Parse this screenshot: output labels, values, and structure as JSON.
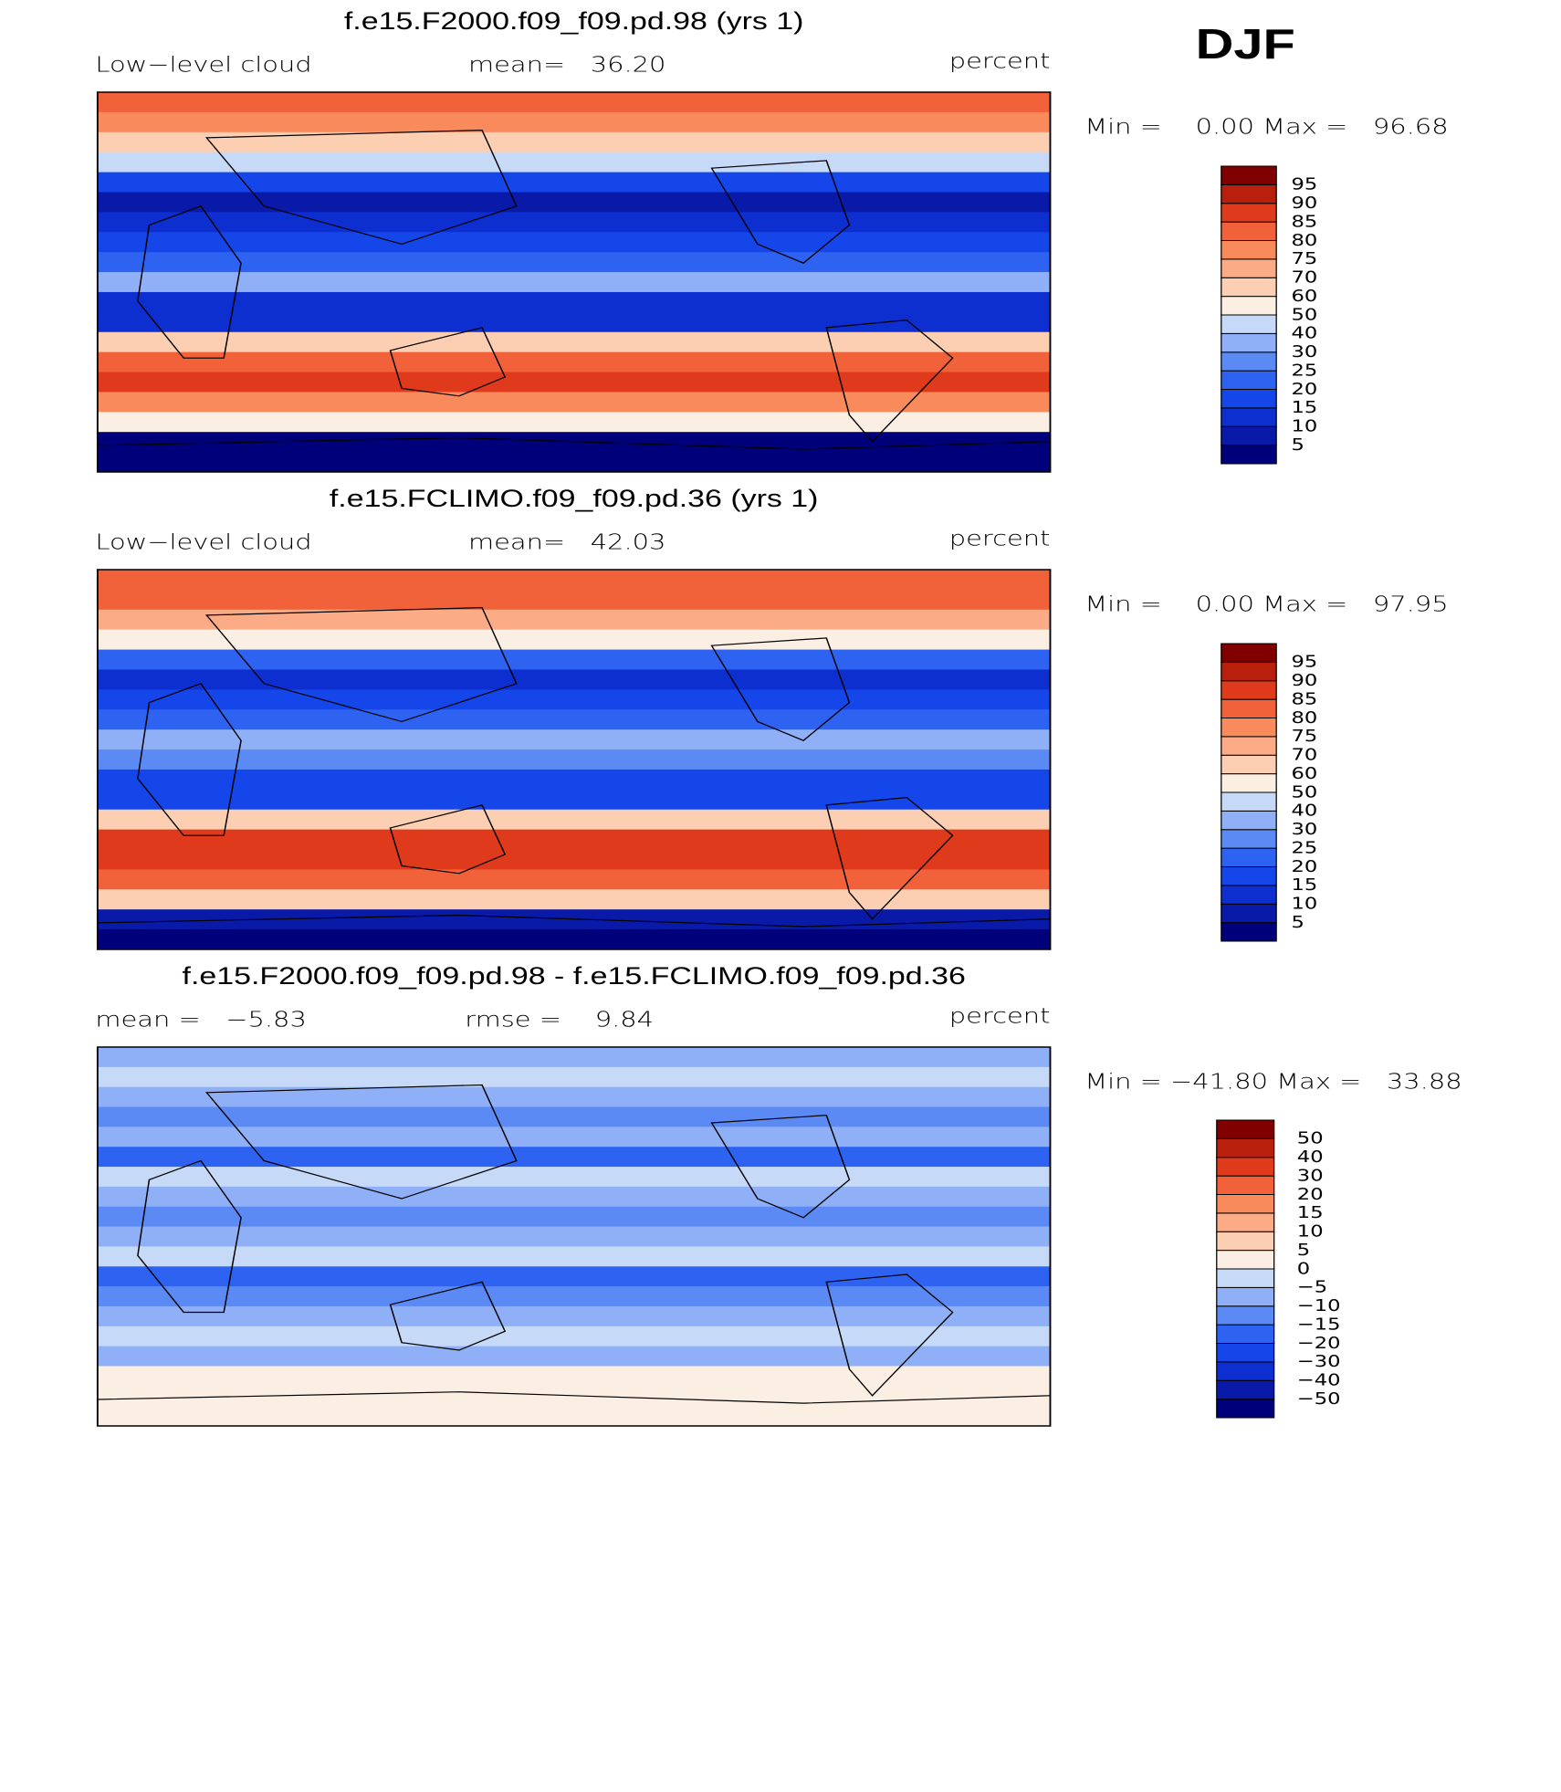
{
  "label": "DJF",
  "panels": [
    {
      "title": "f.e15.F2000.f09_f09.pd.98 (yrs 1)",
      "left": "Low−level cloud",
      "center": "mean=   36.20",
      "right": "percent",
      "min_max": "Min =    0.00 Max =   96.68",
      "colorbar": {
        "levels": [
          5,
          10,
          15,
          20,
          25,
          30,
          40,
          50,
          60,
          70,
          75,
          80,
          85,
          90,
          95
        ],
        "colors": [
          "#00007a",
          "#0a1aa8",
          "#0d2fd0",
          "#1446ea",
          "#2e63f2",
          "#5c8af4",
          "#8fb0f6",
          "#c6daf8",
          "#fbeee2",
          "#fccfb2",
          "#fbac86",
          "#f88a5c",
          "#f1613a",
          "#e03a1c",
          "#b8200d",
          "#800000"
        ]
      }
    },
    {
      "title": "f.e15.FCLIMO.f09_f09.pd.36 (yrs 1)",
      "left": "Low−level cloud",
      "center": "mean=   42.03",
      "right": "percent",
      "min_max": "Min =    0.00 Max =   97.95",
      "colorbar": {
        "levels": [
          5,
          10,
          15,
          20,
          25,
          30,
          40,
          50,
          60,
          70,
          75,
          80,
          85,
          90,
          95
        ],
        "colors": [
          "#00007a",
          "#0a1aa8",
          "#0d2fd0",
          "#1446ea",
          "#2e63f2",
          "#5c8af4",
          "#8fb0f6",
          "#c6daf8",
          "#fbeee2",
          "#fccfb2",
          "#fbac86",
          "#f88a5c",
          "#f1613a",
          "#e03a1c",
          "#b8200d",
          "#800000"
        ]
      }
    },
    {
      "title": "f.e15.F2000.f09_f09.pd.98 - f.e15.FCLIMO.f09_f09.pd.36",
      "left": "mean =   −5.83",
      "center": "rmse =    9.84",
      "right": "percent",
      "min_max": "Min = −41.80 Max =   33.88",
      "colorbar": {
        "levels": [
          {
            "value": -50,
            "label": "−50"
          },
          {
            "value": -40,
            "label": "−40"
          },
          {
            "value": -30,
            "label": "−30"
          },
          {
            "value": -20,
            "label": "−20"
          },
          {
            "value": -15,
            "label": "−15"
          },
          {
            "value": -10,
            "label": "−10"
          },
          {
            "value": -5,
            "label": "−5"
          },
          0,
          5,
          10,
          15,
          20,
          30,
          40,
          50
        ],
        "colors": [
          "#00007a",
          "#0a1aa8",
          "#0d2fd0",
          "#1446ea",
          "#2e63f2",
          "#5c8af4",
          "#8fb0f6",
          "#c6daf8",
          "#fbeee2",
          "#fccfb2",
          "#fbac86",
          "#f88a5c",
          "#f1613a",
          "#e03a1c",
          "#b8200d",
          "#800000"
        ]
      }
    }
  ]
}
